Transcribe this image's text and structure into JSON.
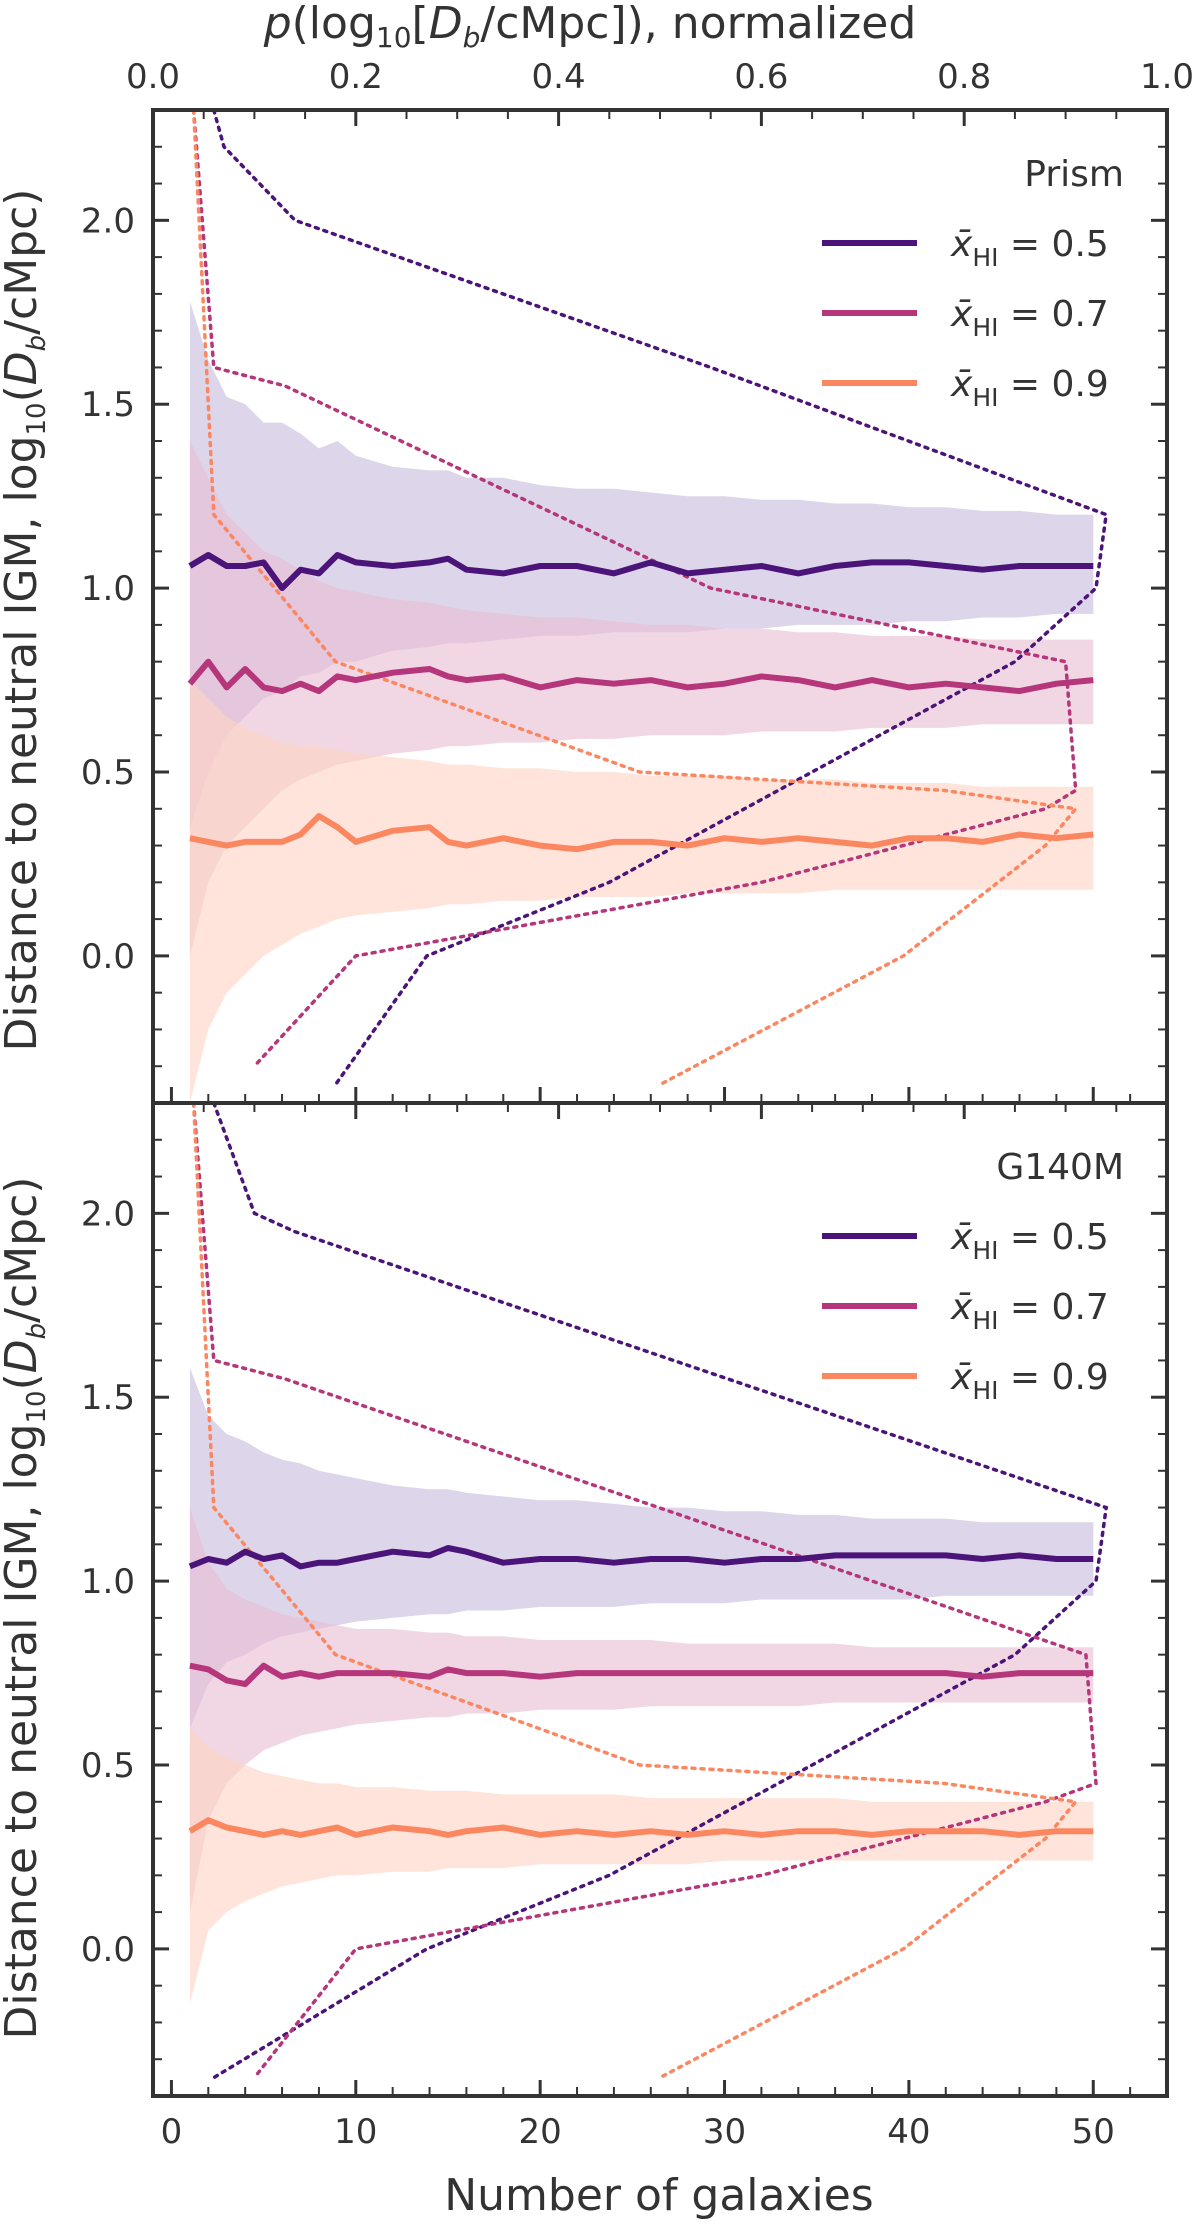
{
  "colors": {
    "series_0_5": "#4b1478",
    "series_0_7": "#b5367a",
    "series_0_9": "#fb8761",
    "band_0_5": "#c8bcdc",
    "band_0_7": "#e8bfd3",
    "band_0_9": "#fdd3c3",
    "axis": "#333333"
  },
  "top_axis": {
    "label": "p(log10[Db/cMpc]), normalized",
    "label_parts": {
      "p": "p",
      "open": "(log",
      "sub": "10",
      "bracket": "[",
      "D": "D",
      "Dsub": "b",
      "rest": "/cMpc]), normalized"
    },
    "ticks": [
      "0.0",
      "0.2",
      "0.4",
      "0.6",
      "0.8",
      "1.0"
    ],
    "range": [
      0,
      1
    ]
  },
  "x_axis": {
    "label": "Number of galaxies",
    "ticks": [
      "0",
      "10",
      "20",
      "30",
      "40",
      "50"
    ],
    "range": [
      -1,
      54
    ]
  },
  "y_axis": {
    "label": "Distance to neutral IGM, log10(Db/cMpc)",
    "label_parts": {
      "pre": "Distance to neutral IGM, log",
      "sub": "10",
      "open": "(",
      "D": "D",
      "Dsub": "b",
      "rest": "/cMpc)"
    },
    "ticks": [
      "0.0",
      "0.5",
      "1.0",
      "1.5",
      "2.0"
    ],
    "range": [
      -0.4,
      2.3
    ]
  },
  "chart_data": [
    {
      "type": "line",
      "panel": "top",
      "title": "Prism",
      "x": [
        1,
        2,
        3,
        4,
        5,
        6,
        7,
        8,
        9,
        10,
        12,
        14,
        15,
        16,
        18,
        20,
        22,
        24,
        26,
        28,
        30,
        32,
        34,
        36,
        38,
        40,
        42,
        44,
        46,
        48,
        50
      ],
      "series": [
        {
          "name": "x̄HI = 0.5",
          "median": [
            1.06,
            1.09,
            1.06,
            1.06,
            1.07,
            1.0,
            1.05,
            1.04,
            1.09,
            1.07,
            1.06,
            1.07,
            1.08,
            1.05,
            1.04,
            1.06,
            1.06,
            1.04,
            1.07,
            1.04,
            1.05,
            1.06,
            1.04,
            1.06,
            1.07,
            1.07,
            1.06,
            1.05,
            1.06,
            1.06,
            1.06
          ],
          "upper": [
            1.78,
            1.62,
            1.52,
            1.5,
            1.45,
            1.45,
            1.42,
            1.38,
            1.4,
            1.36,
            1.33,
            1.32,
            1.32,
            1.3,
            1.3,
            1.28,
            1.27,
            1.27,
            1.26,
            1.25,
            1.25,
            1.24,
            1.24,
            1.23,
            1.23,
            1.22,
            1.22,
            1.21,
            1.21,
            1.2,
            1.2
          ],
          "lower": [
            0.35,
            0.5,
            0.6,
            0.65,
            0.7,
            0.72,
            0.76,
            0.77,
            0.8,
            0.8,
            0.83,
            0.84,
            0.85,
            0.85,
            0.86,
            0.87,
            0.87,
            0.88,
            0.88,
            0.88,
            0.89,
            0.89,
            0.9,
            0.9,
            0.9,
            0.91,
            0.91,
            0.92,
            0.92,
            0.93,
            0.93
          ]
        },
        {
          "name": "x̄HI = 0.7",
          "median": [
            0.74,
            0.8,
            0.73,
            0.78,
            0.73,
            0.72,
            0.74,
            0.72,
            0.76,
            0.75,
            0.77,
            0.78,
            0.76,
            0.75,
            0.76,
            0.73,
            0.75,
            0.74,
            0.75,
            0.73,
            0.74,
            0.76,
            0.75,
            0.73,
            0.75,
            0.73,
            0.74,
            0.73,
            0.72,
            0.74,
            0.75
          ],
          "upper": [
            1.4,
            1.3,
            1.2,
            1.15,
            1.1,
            1.08,
            1.05,
            1.02,
            1.0,
            0.99,
            0.97,
            0.96,
            0.95,
            0.94,
            0.93,
            0.92,
            0.92,
            0.91,
            0.9,
            0.9,
            0.89,
            0.89,
            0.88,
            0.88,
            0.87,
            0.87,
            0.87,
            0.86,
            0.86,
            0.86,
            0.86
          ],
          "lower": [
            0.0,
            0.2,
            0.3,
            0.35,
            0.4,
            0.45,
            0.48,
            0.5,
            0.52,
            0.53,
            0.55,
            0.56,
            0.57,
            0.57,
            0.58,
            0.58,
            0.59,
            0.59,
            0.6,
            0.6,
            0.6,
            0.61,
            0.61,
            0.61,
            0.62,
            0.62,
            0.62,
            0.63,
            0.63,
            0.63,
            0.63
          ]
        },
        {
          "name": "x̄HI = 0.9",
          "median": [
            0.32,
            0.31,
            0.3,
            0.31,
            0.31,
            0.31,
            0.33,
            0.38,
            0.35,
            0.31,
            0.34,
            0.35,
            0.31,
            0.3,
            0.32,
            0.3,
            0.29,
            0.31,
            0.31,
            0.3,
            0.32,
            0.31,
            0.32,
            0.31,
            0.3,
            0.32,
            0.32,
            0.31,
            0.33,
            0.32,
            0.33
          ],
          "upper": [
            0.75,
            0.7,
            0.65,
            0.62,
            0.6,
            0.58,
            0.57,
            0.57,
            0.56,
            0.55,
            0.54,
            0.53,
            0.52,
            0.52,
            0.51,
            0.51,
            0.5,
            0.5,
            0.49,
            0.49,
            0.49,
            0.48,
            0.48,
            0.48,
            0.47,
            0.47,
            0.47,
            0.46,
            0.46,
            0.46,
            0.46
          ],
          "lower": [
            -0.4,
            -0.2,
            -0.1,
            -0.05,
            0.0,
            0.03,
            0.06,
            0.08,
            0.1,
            0.11,
            0.12,
            0.13,
            0.14,
            0.14,
            0.15,
            0.15,
            0.16,
            0.16,
            0.16,
            0.17,
            0.17,
            0.17,
            0.17,
            0.18,
            0.18,
            0.18,
            0.18,
            0.18,
            0.18,
            0.18,
            0.18
          ]
        }
      ],
      "distributions": [
        {
          "name": "x̄HI = 0.5",
          "y": [
            2.3,
            2.2,
            2.0,
            1.6,
            1.2,
            1.0,
            0.8,
            0.5,
            0.2,
            0.0,
            -0.35
          ],
          "p": [
            0.06,
            0.07,
            0.14,
            0.55,
            0.94,
            0.93,
            0.85,
            0.65,
            0.45,
            0.27,
            0.18
          ]
        },
        {
          "name": "x̄HI = 0.7",
          "y": [
            2.3,
            1.6,
            1.55,
            1.0,
            0.8,
            0.45,
            0.4,
            0.2,
            0.0,
            -0.3
          ],
          "p": [
            0.04,
            0.06,
            0.13,
            0.55,
            0.9,
            0.91,
            0.88,
            0.6,
            0.2,
            0.1
          ]
        },
        {
          "name": "x̄HI = 0.9",
          "y": [
            2.3,
            1.2,
            0.8,
            0.5,
            0.45,
            0.4,
            0.3,
            0.0,
            -0.35
          ],
          "p": [
            0.04,
            0.06,
            0.18,
            0.48,
            0.78,
            0.91,
            0.88,
            0.74,
            0.5
          ]
        }
      ],
      "ylim": [
        -0.4,
        2.3
      ],
      "xlim": [
        -1,
        54
      ],
      "legend": "upper right"
    },
    {
      "type": "line",
      "panel": "bottom",
      "title": "G140M",
      "x": [
        1,
        2,
        3,
        4,
        5,
        6,
        7,
        8,
        9,
        10,
        12,
        14,
        15,
        16,
        18,
        20,
        22,
        24,
        26,
        28,
        30,
        32,
        34,
        36,
        38,
        40,
        42,
        44,
        46,
        48,
        50
      ],
      "series": [
        {
          "name": "x̄HI = 0.5",
          "median": [
            1.04,
            1.06,
            1.05,
            1.08,
            1.06,
            1.07,
            1.04,
            1.05,
            1.05,
            1.06,
            1.08,
            1.07,
            1.09,
            1.08,
            1.05,
            1.06,
            1.06,
            1.05,
            1.06,
            1.06,
            1.05,
            1.06,
            1.06,
            1.07,
            1.07,
            1.07,
            1.07,
            1.06,
            1.07,
            1.06,
            1.06
          ],
          "upper": [
            1.58,
            1.45,
            1.4,
            1.38,
            1.35,
            1.33,
            1.32,
            1.3,
            1.29,
            1.28,
            1.26,
            1.25,
            1.25,
            1.24,
            1.23,
            1.22,
            1.22,
            1.21,
            1.2,
            1.2,
            1.19,
            1.19,
            1.18,
            1.18,
            1.17,
            1.17,
            1.17,
            1.16,
            1.16,
            1.16,
            1.16
          ],
          "lower": [
            0.6,
            0.72,
            0.78,
            0.8,
            0.83,
            0.85,
            0.86,
            0.87,
            0.88,
            0.89,
            0.9,
            0.91,
            0.91,
            0.92,
            0.92,
            0.93,
            0.93,
            0.93,
            0.94,
            0.94,
            0.94,
            0.95,
            0.95,
            0.95,
            0.95,
            0.95,
            0.96,
            0.96,
            0.96,
            0.96,
            0.96
          ]
        },
        {
          "name": "x̄HI = 0.7",
          "median": [
            0.77,
            0.76,
            0.73,
            0.72,
            0.77,
            0.74,
            0.75,
            0.74,
            0.75,
            0.75,
            0.75,
            0.74,
            0.76,
            0.75,
            0.75,
            0.74,
            0.75,
            0.75,
            0.75,
            0.75,
            0.75,
            0.75,
            0.75,
            0.75,
            0.75,
            0.75,
            0.75,
            0.74,
            0.75,
            0.75,
            0.75
          ],
          "upper": [
            1.2,
            1.05,
            0.98,
            0.95,
            0.93,
            0.91,
            0.9,
            0.89,
            0.88,
            0.87,
            0.87,
            0.86,
            0.86,
            0.85,
            0.85,
            0.84,
            0.84,
            0.84,
            0.84,
            0.83,
            0.83,
            0.83,
            0.83,
            0.83,
            0.82,
            0.82,
            0.82,
            0.82,
            0.82,
            0.82,
            0.82
          ],
          "lower": [
            0.1,
            0.35,
            0.45,
            0.5,
            0.54,
            0.56,
            0.58,
            0.59,
            0.6,
            0.61,
            0.62,
            0.63,
            0.63,
            0.64,
            0.64,
            0.65,
            0.65,
            0.65,
            0.66,
            0.66,
            0.66,
            0.66,
            0.66,
            0.67,
            0.67,
            0.67,
            0.67,
            0.67,
            0.67,
            0.67,
            0.67
          ]
        },
        {
          "name": "x̄HI = 0.9",
          "median": [
            0.32,
            0.35,
            0.33,
            0.32,
            0.31,
            0.32,
            0.31,
            0.32,
            0.33,
            0.31,
            0.33,
            0.32,
            0.31,
            0.32,
            0.33,
            0.31,
            0.32,
            0.31,
            0.32,
            0.31,
            0.32,
            0.31,
            0.32,
            0.32,
            0.31,
            0.32,
            0.32,
            0.32,
            0.31,
            0.32,
            0.32
          ],
          "upper": [
            0.6,
            0.55,
            0.52,
            0.5,
            0.48,
            0.47,
            0.46,
            0.45,
            0.45,
            0.44,
            0.44,
            0.43,
            0.43,
            0.43,
            0.42,
            0.42,
            0.42,
            0.42,
            0.41,
            0.41,
            0.41,
            0.41,
            0.41,
            0.41,
            0.4,
            0.4,
            0.4,
            0.4,
            0.4,
            0.4,
            0.4
          ],
          "lower": [
            -0.15,
            0.05,
            0.1,
            0.13,
            0.15,
            0.17,
            0.18,
            0.19,
            0.2,
            0.2,
            0.21,
            0.21,
            0.22,
            0.22,
            0.22,
            0.23,
            0.23,
            0.23,
            0.23,
            0.23,
            0.24,
            0.24,
            0.24,
            0.24,
            0.24,
            0.24,
            0.24,
            0.24,
            0.24,
            0.24,
            0.24
          ]
        }
      ],
      "distributions": [
        {
          "name": "x̄HI = 0.5",
          "y": [
            2.3,
            2.0,
            1.95,
            1.2,
            1.0,
            0.8,
            0.5,
            0.2,
            0.0,
            -0.35
          ],
          "p": [
            0.06,
            0.1,
            0.14,
            0.94,
            0.93,
            0.85,
            0.65,
            0.45,
            0.27,
            0.06
          ]
        },
        {
          "name": "x̄HI = 0.7",
          "y": [
            2.3,
            1.6,
            1.55,
            0.8,
            0.45,
            0.4,
            0.2,
            0.0,
            -0.35
          ],
          "p": [
            0.04,
            0.06,
            0.13,
            0.92,
            0.93,
            0.88,
            0.6,
            0.2,
            0.1
          ]
        },
        {
          "name": "x̄HI = 0.9",
          "y": [
            2.3,
            1.2,
            0.8,
            0.5,
            0.45,
            0.4,
            0.3,
            0.0,
            -0.35
          ],
          "p": [
            0.04,
            0.06,
            0.18,
            0.48,
            0.78,
            0.91,
            0.88,
            0.74,
            0.5
          ]
        }
      ],
      "ylim": [
        -0.4,
        2.3
      ],
      "xlim": [
        -1,
        54
      ],
      "legend": "upper right"
    }
  ]
}
